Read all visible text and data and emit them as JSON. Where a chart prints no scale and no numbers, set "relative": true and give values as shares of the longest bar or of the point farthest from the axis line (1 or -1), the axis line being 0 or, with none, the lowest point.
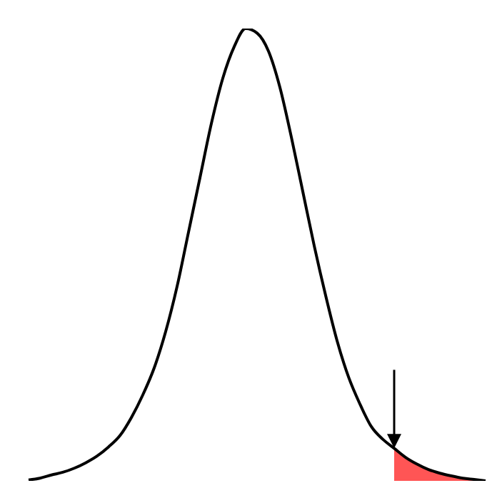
{
  "chart_data": {
    "type": "line",
    "relative": true,
    "marker": "none",
    "legend": false,
    "grid": false,
    "categories": [
      null,
      null,
      null,
      null,
      null,
      null,
      null,
      null,
      null,
      null,
      null,
      null,
      null,
      null,
      null,
      null,
      null,
      null,
      null,
      null,
      null,
      null,
      null,
      null,
      null,
      null,
      null,
      null,
      null,
      null,
      null,
      null,
      null,
      null,
      null,
      null,
      null,
      null,
      null,
      null,
      null
    ],
    "series": [
      {
        "color": "#000000",
        "values": [
          0.002,
          0.006,
          0.013,
          0.019,
          0.028,
          0.04,
          0.055,
          0.075,
          0.1,
          0.14,
          0.19,
          0.25,
          0.33,
          0.43,
          0.55,
          0.67,
          0.79,
          0.89,
          0.96,
          1,
          0.99,
          0.95,
          0.87,
          0.76,
          0.64,
          0.52,
          0.41,
          0.31,
          0.23,
          0.17,
          0.12,
          0.092,
          0.072,
          0.052,
          0.037,
          0.025,
          0.017,
          0.011,
          0.006,
          0.003,
          0
        ]
      },
      {
        "type": "area",
        "color": "#ff5555",
        "values": [
          null,
          null,
          null,
          null,
          null,
          null,
          null,
          null,
          null,
          null,
          null,
          null,
          null,
          null,
          null,
          null,
          null,
          null,
          null,
          null,
          null,
          null,
          null,
          null,
          null,
          null,
          null,
          null,
          null,
          null,
          null,
          null,
          0.072,
          0.052,
          0.037,
          0.025,
          0.017,
          0.011,
          0.006,
          0.003,
          0
        ]
      }
    ]
  }
}
